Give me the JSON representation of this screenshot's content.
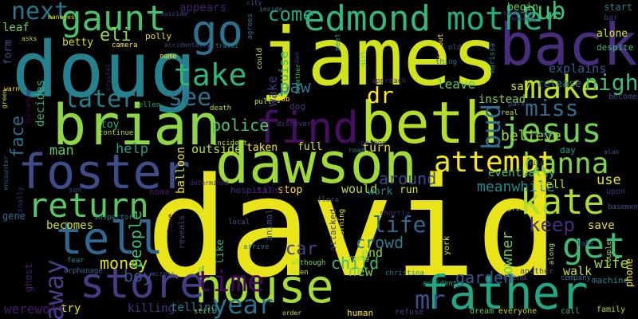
{
  "words": [
    {
      "text": "david",
      "color": "#e8e419"
    },
    {
      "text": "james",
      "color": "#d2e21b"
    },
    {
      "text": "doug",
      "color": "#26818e"
    },
    {
      "text": "back",
      "color": "#472e7c"
    },
    {
      "text": "brian",
      "color": "#8ed645"
    },
    {
      "text": "beth",
      "color": "#b5de2b"
    },
    {
      "text": "dawson",
      "color": "#a0da39"
    },
    {
      "text": "foster",
      "color": "#3e4c8a"
    },
    {
      "text": "house",
      "color": "#a8db34"
    },
    {
      "text": "father",
      "color": "#22a785"
    },
    {
      "text": "find",
      "color": "#440f5e"
    },
    {
      "text": "go",
      "color": "#2c718e"
    },
    {
      "text": "gaunt",
      "color": "#4ac16d"
    },
    {
      "text": "edmond",
      "color": "#35b779"
    },
    {
      "text": "store",
      "color": "#433e85"
    },
    {
      "text": "tell",
      "color": "#31668e"
    },
    {
      "text": "return",
      "color": "#5ac864"
    },
    {
      "text": "jesus",
      "color": "#74d055"
    },
    {
      "text": "hanna",
      "color": "#81d34d"
    },
    {
      "text": "kate",
      "color": "#addc30"
    },
    {
      "text": "get",
      "color": "#3cbb75"
    },
    {
      "text": "time",
      "color": "#46085c"
    },
    {
      "text": "year",
      "color": "#2c718e"
    },
    {
      "text": "make",
      "color": "#bddf26"
    },
    {
      "text": "take",
      "color": "#31b57b"
    },
    {
      "text": "see",
      "color": "#2e6f8e"
    },
    {
      "text": "later",
      "color": "#277f8e"
    },
    {
      "text": "miss",
      "color": "#2f6c8e"
    },
    {
      "text": "night",
      "color": "#3fbc73"
    },
    {
      "text": "mother",
      "color": "#25ac82"
    },
    {
      "text": "pub",
      "color": "#46c06f"
    },
    {
      "text": "eli",
      "color": "#8ed645"
    },
    {
      "text": "next",
      "color": "#2a768e"
    },
    {
      "text": "come",
      "color": "#22a884"
    },
    {
      "text": "paw",
      "color": "#2c728e"
    },
    {
      "text": "dr",
      "color": "#fde725"
    },
    {
      "text": "attempt",
      "color": "#f4e61e"
    },
    {
      "text": "bud",
      "color": "#2d708e"
    },
    {
      "text": "mr",
      "color": "#3c4f8a"
    },
    {
      "text": "away",
      "color": "#433e85"
    },
    {
      "text": "keep",
      "color": "#472d7b"
    },
    {
      "text": "life",
      "color": "#31688e"
    },
    {
      "text": "crowd",
      "color": "#2a788e"
    },
    {
      "text": "car",
      "color": "#414287"
    },
    {
      "text": "money",
      "color": "#e2e418"
    },
    {
      "text": "boy",
      "color": "#3b528b"
    },
    {
      "text": "people",
      "color": "#3dbc74"
    },
    {
      "text": "face",
      "color": "#2e6e8e"
    },
    {
      "text": "police",
      "color": "#4ec36b"
    },
    {
      "text": "man",
      "color": "#5cc863"
    },
    {
      "text": "help",
      "color": "#1f9f88"
    },
    {
      "text": "around",
      "color": "#3e4a89"
    },
    {
      "text": "leave",
      "color": "#5ec962"
    },
    {
      "text": "turn",
      "color": "#f1e51d"
    },
    {
      "text": "believe",
      "color": "#a2da37"
    },
    {
      "text": "meanwhile",
      "color": "#228c8d"
    },
    {
      "text": "use",
      "color": "#e5e419"
    },
    {
      "text": "wife",
      "color": "#98d83e"
    },
    {
      "text": "garden",
      "color": "#38588c"
    },
    {
      "text": "owner",
      "color": "#6ccd5a"
    },
    {
      "text": "try",
      "color": "#e7e419"
    },
    {
      "text": "killing",
      "color": "#453581"
    },
    {
      "text": "werewolf",
      "color": "#481a6c"
    },
    {
      "text": "telling",
      "color": "#27808e"
    },
    {
      "text": "child",
      "color": "#3aba76"
    },
    {
      "text": "new",
      "color": "#75d054"
    },
    {
      "text": "end",
      "color": "#8bd646"
    },
    {
      "text": "would",
      "color": "#b2dd2d"
    },
    {
      "text": "work",
      "color": "#228d8d"
    },
    {
      "text": "run",
      "color": "#d8e219"
    },
    {
      "text": "sell",
      "color": "#c0df25"
    },
    {
      "text": "save",
      "color": "#e5e419"
    },
    {
      "text": "walk",
      "color": "#c5e021"
    },
    {
      "text": "becomes",
      "color": "#cde11d"
    },
    {
      "text": "full",
      "color": "#d8e219"
    },
    {
      "text": "taken",
      "color": "#fde725"
    },
    {
      "text": "balloon",
      "color": "#e5e419"
    },
    {
      "text": "outside",
      "color": "#b8de29"
    },
    {
      "text": "home",
      "color": "#48186a"
    },
    {
      "text": "day",
      "color": "#1fa088"
    },
    {
      "text": "explains",
      "color": "#375b8d"
    },
    {
      "text": "release",
      "color": "#2a788e"
    },
    {
      "text": "instead",
      "color": "#7fd34e"
    },
    {
      "text": "say",
      "color": "#d2e21b"
    },
    {
      "text": "toy",
      "color": "#27ad81"
    },
    {
      "text": "louise",
      "color": "#38b977"
    },
    {
      "text": "wake",
      "color": "#453781"
    },
    {
      "text": "appears",
      "color": "#481c6e"
    },
    {
      "text": "leaf",
      "color": "#75d054"
    },
    {
      "text": "eventually",
      "color": "#52c569"
    },
    {
      "text": "stop",
      "color": "#fde725"
    },
    {
      "text": "since",
      "color": "#471164"
    },
    {
      "text": "hospital",
      "color": "#472d7b"
    },
    {
      "text": "dog",
      "color": "#46327e"
    },
    {
      "text": "polly",
      "color": "#e2e418"
    },
    {
      "text": "betty",
      "color": "#dde318"
    },
    {
      "text": "begin",
      "color": "#65cb5e"
    },
    {
      "text": "start",
      "color": "#277f8e"
    },
    {
      "text": "alone",
      "color": "#dae319"
    },
    {
      "text": "form",
      "color": "#3b528b"
    },
    {
      "text": "decides",
      "color": "#2db27d"
    },
    {
      "text": "despite",
      "color": "#3fbc73"
    },
    {
      "text": "become",
      "color": "#3b528b"
    },
    {
      "text": "park",
      "color": "#3e4c8a"
    },
    {
      "text": "real",
      "color": "#c2df23"
    },
    {
      "text": "lake",
      "color": "#414487"
    },
    {
      "text": "machine",
      "color": "#24878e"
    },
    {
      "text": "phone",
      "color": "#fde725"
    },
    {
      "text": "another",
      "color": "#404588"
    },
    {
      "text": "friend",
      "color": "#3e4989"
    },
    {
      "text": "call",
      "color": "#31b57b"
    },
    {
      "text": "family",
      "color": "#aadc32"
    },
    {
      "text": "dream",
      "color": "#5ec962"
    },
    {
      "text": "everyone",
      "color": "#bddf26"
    },
    {
      "text": "human",
      "color": "#fde725"
    },
    {
      "text": "refuse",
      "color": "#404588"
    },
    {
      "text": "accident",
      "color": "#22a785"
    },
    {
      "text": "christina",
      "color": "#2a788e"
    },
    {
      "text": "young",
      "color": "#8fd744"
    },
    {
      "text": "although",
      "color": "#73d056"
    },
    {
      "text": "open",
      "color": "#c8e020"
    },
    {
      "text": "arrive",
      "color": "#2a768e"
    },
    {
      "text": "local",
      "color": "#38598c"
    },
    {
      "text": "still",
      "color": "#6ece58"
    },
    {
      "text": "order",
      "color": "#d0e11c"
    },
    {
      "text": "love",
      "color": "#440154"
    },
    {
      "text": "reveals",
      "color": "#3f4788"
    },
    {
      "text": "across",
      "color": "#3b528b"
    },
    {
      "text": "fear",
      "color": "#26818e"
    },
    {
      "text": "orphanage",
      "color": "#31668e"
    },
    {
      "text": "ghost",
      "color": "#481d6f"
    },
    {
      "text": "gene",
      "color": "#2b758e"
    },
    {
      "text": "finally",
      "color": "#482677"
    },
    {
      "text": "son",
      "color": "#3e4a89"
    },
    {
      "text": "inspector",
      "color": "#25858e"
    },
    {
      "text": "determined",
      "color": "#472c7a"
    },
    {
      "text": "like",
      "color": "#32b67a"
    },
    {
      "text": "animal",
      "color": "#3b528b"
    },
    {
      "text": "attacked",
      "color": "#45337d"
    },
    {
      "text": "morning",
      "color": "#d5e21a"
    },
    {
      "text": "shortly",
      "color": "#482475"
    },
    {
      "text": "york",
      "color": "#d5e21a"
    },
    {
      "text": "flora",
      "color": "#3b528b"
    },
    {
      "text": "road",
      "color": "#26828e"
    },
    {
      "text": "change",
      "color": "#433d84"
    },
    {
      "text": "incident",
      "color": "#b8de29"
    },
    {
      "text": "discover",
      "color": "#433e85"
    },
    {
      "text": "pull",
      "color": "#e2e418"
    },
    {
      "text": "job",
      "color": "#fde725"
    },
    {
      "text": "death",
      "color": "#b5de2b"
    },
    {
      "text": "ellen",
      "color": "#20a386"
    },
    {
      "text": "continue",
      "color": "#b2dd2d"
    },
    {
      "text": "travel",
      "color": "#27808e"
    },
    {
      "text": "name",
      "color": "#fde725"
    },
    {
      "text": "camera",
      "color": "#fde725"
    },
    {
      "text": "accidentally",
      "color": "#3b528b"
    },
    {
      "text": "suicide",
      "color": "#3c508b"
    },
    {
      "text": "city",
      "color": "#3b528b"
    },
    {
      "text": "inside",
      "color": "#27808e"
    },
    {
      "text": "agrees",
      "color": "#2c728e"
    },
    {
      "text": "could",
      "color": "#d8e219"
    },
    {
      "text": "dan",
      "color": "#46337f"
    },
    {
      "text": "together",
      "color": "#36b878"
    },
    {
      "text": "meet",
      "color": "#21918c"
    },
    {
      "text": "girl",
      "color": "#4ac16d"
    },
    {
      "text": "approach",
      "color": "#482878"
    },
    {
      "text": "without",
      "color": "#fde725"
    },
    {
      "text": "old",
      "color": "#3b528b"
    },
    {
      "text": "thing",
      "color": "#2a778e"
    },
    {
      "text": "marissa",
      "color": "#25858e"
    },
    {
      "text": "suddenly",
      "color": "#46337f"
    },
    {
      "text": "however",
      "color": "#46327e"
    },
    {
      "text": "bar",
      "color": "#46337f"
    },
    {
      "text": "manages",
      "color": "#d8e219"
    },
    {
      "text": "asks",
      "color": "#c0df25"
    },
    {
      "text": "green",
      "color": "#c8e020"
    },
    {
      "text": "warn",
      "color": "#fde725"
    },
    {
      "text": "including",
      "color": "#440154"
    },
    {
      "text": "encounter",
      "color": "#355f8d"
    },
    {
      "text": "crystal",
      "color": "#482878"
    },
    {
      "text": "street",
      "color": "#2d708e"
    },
    {
      "text": "mile",
      "color": "#3b528b"
    },
    {
      "text": "alan",
      "color": "#3b528b"
    },
    {
      "text": "upon",
      "color": "#472e7c"
    },
    {
      "text": "basement",
      "color": "#3b528b"
    },
    {
      "text": "priest",
      "color": "#d8e219"
    },
    {
      "text": "along",
      "color": "#bddf26"
    },
    {
      "text": "company",
      "color": "#2d708e"
    },
    {
      "text": "couple",
      "color": "#a5db36"
    },
    {
      "text": "getting",
      "color": "#d8e219"
    },
    {
      "text": "many",
      "color": "#d8e219"
    }
  ]
}
